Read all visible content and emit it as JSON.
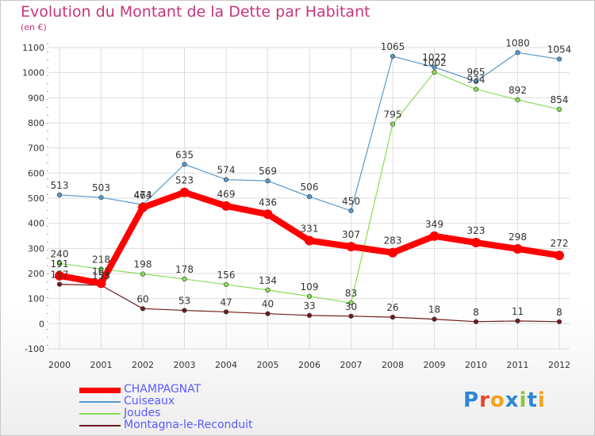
{
  "title": "Evolution du Montant de la Dette par Habitant",
  "subtitle": "(en €)",
  "logo_text": "Proxiti",
  "colors": {
    "title": "#c7357b",
    "axis": "#333333",
    "grid": "#dddddd",
    "legend_text": "#5a5aff"
  },
  "chart_data": {
    "type": "line",
    "x": [
      "2000",
      "2001",
      "2002",
      "2003",
      "2004",
      "2005",
      "2006",
      "2007",
      "2008",
      "2009",
      "2010",
      "2011",
      "2012"
    ],
    "ylim": [
      -100,
      1100
    ],
    "yticks": [
      -100,
      0,
      100,
      200,
      300,
      400,
      500,
      600,
      700,
      800,
      900,
      1000,
      1100
    ],
    "grid": true,
    "legend_position": "bottom-left",
    "series": [
      {
        "name": "Montagna-le-Reconduit",
        "color": "#6e1c1c",
        "stroke": 1.2,
        "marker": 2.8,
        "values": [
          157,
          153,
          60,
          53,
          47,
          40,
          33,
          30,
          26,
          18,
          8,
          11,
          8
        ],
        "labels": [
          "157",
          "153",
          "60",
          "53",
          "47",
          "40",
          "33",
          "30",
          "26",
          "18",
          "8",
          "11",
          "8"
        ]
      },
      {
        "name": "Joudes",
        "color": "#88dd55",
        "stroke": 1.2,
        "marker": 2.8,
        "values": [
          240,
          218,
          198,
          178,
          156,
          134,
          109,
          83,
          795,
          1002,
          934,
          892,
          854
        ],
        "labels": [
          "240",
          "218",
          "198",
          "178",
          "156",
          "134",
          "109",
          "83",
          "795",
          "1002",
          "934",
          "892",
          "854"
        ]
      },
      {
        "name": "Cuiseaux",
        "color": "#5599cc",
        "stroke": 1.2,
        "marker": 2.8,
        "values": [
          513,
          503,
          474,
          635,
          574,
          569,
          506,
          450,
          1065,
          1022,
          965,
          1080,
          1054
        ],
        "labels": [
          "513",
          "503",
          "474",
          "635",
          "574",
          "569",
          "506",
          "450",
          "1065",
          "1022",
          "965",
          "1080",
          "1054"
        ]
      },
      {
        "name": "CHAMPAGNAT",
        "color": "#ff0000",
        "stroke": 8,
        "marker": 6,
        "values": [
          191,
          161,
          463,
          523,
          469,
          436,
          331,
          307,
          283,
          349,
          323,
          298,
          272
        ],
        "labels": [
          "191",
          "161",
          "463",
          "523",
          "469",
          "436",
          "331",
          "307",
          "283",
          "349",
          "323",
          "298",
          "272"
        ]
      }
    ]
  },
  "legend": [
    {
      "name": "CHAMPAGNAT",
      "color": "#ff0000",
      "thickness": 7
    },
    {
      "name": "Cuiseaux",
      "color": "#5599cc",
      "thickness": 2
    },
    {
      "name": "Joudes",
      "color": "#88dd55",
      "thickness": 2
    },
    {
      "name": "Montagna-le-Reconduit",
      "color": "#6e1c1c",
      "thickness": 2
    }
  ]
}
